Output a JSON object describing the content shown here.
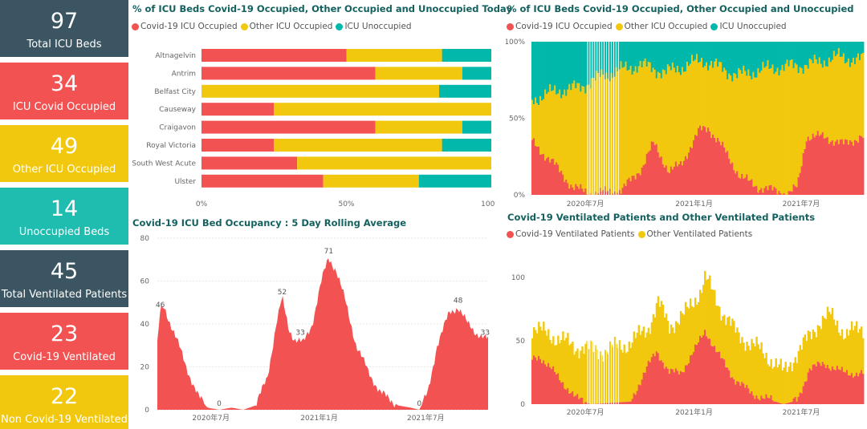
{
  "colors": {
    "covid": "#f25252",
    "other": "#f2c80f",
    "unoccupied": "#01b8aa",
    "slate": "#374649",
    "grid": "#e6e6e6",
    "axis_text": "#666666",
    "title": "#14615f"
  },
  "kpis": [
    {
      "value": "97",
      "label": "Total ICU Beds",
      "color": "#3b5662"
    },
    {
      "value": "34",
      "label": "ICU Covid Occupied",
      "color": "#f25252"
    },
    {
      "value": "49",
      "label": "Other ICU Occupied",
      "color": "#f2c80f"
    },
    {
      "value": "14",
      "label": "Unoccupied Beds",
      "color": "#1fbcb0"
    },
    {
      "value": "45",
      "label": "Total Ventilated Patients",
      "color": "#3b5662"
    },
    {
      "value": "23",
      "label": "Covid-19 Ventilated",
      "color": "#f25252"
    },
    {
      "value": "22",
      "label": "Non Covid-19 Ventilated",
      "color": "#f2c80f"
    }
  ],
  "chart_data": [
    {
      "id": "hospitals_today",
      "type": "bar",
      "orientation": "horizontal",
      "stacking": "percent",
      "title": "% of ICU Beds Covid-19 Occupied, Other Occupied and Unoccupied Today",
      "categories": [
        "Altnagelvin",
        "Antrim",
        "Belfast City",
        "Causeway",
        "Craigavon",
        "Royal Victoria",
        "South West Acute",
        "Ulster"
      ],
      "series": [
        {
          "name": "Covid-19 ICU Occupied",
          "color": "#f25252",
          "values": [
            50,
            60,
            0,
            25,
            60,
            25,
            33,
            42
          ]
        },
        {
          "name": "Other ICU Occupied",
          "color": "#f2c80f",
          "values": [
            33,
            30,
            82,
            75,
            30,
            58,
            67,
            33
          ]
        },
        {
          "name": "ICU Unoccupied",
          "color": "#01b8aa",
          "values": [
            17,
            10,
            18,
            0,
            10,
            17,
            0,
            25
          ]
        }
      ],
      "xticks": [
        "0%",
        "50%",
        "100%"
      ],
      "xlim": [
        0,
        100
      ],
      "legend": "top-left"
    },
    {
      "id": "icu_history",
      "type": "area",
      "stacking": "percent",
      "title": "% of ICU Beds Covid-19 Occupied, Other Occupied and Unoccupied",
      "x_range": [
        "2020-04",
        "2021-10"
      ],
      "series": [
        {
          "name": "Covid-19 ICU Occupied",
          "color": "#f25252"
        },
        {
          "name": "Other ICU Occupied",
          "color": "#f2c80f"
        },
        {
          "name": "ICU Unoccupied",
          "color": "#01b8aa"
        }
      ],
      "covid_pct_keypoints": [
        [
          "2020-04-01",
          35
        ],
        [
          "2020-05-10",
          20
        ],
        [
          "2020-06-10",
          5
        ],
        [
          "2020-07-10",
          1
        ],
        [
          "2020-09-01",
          3
        ],
        [
          "2020-10-05",
          18
        ],
        [
          "2020-10-25",
          34
        ],
        [
          "2020-11-20",
          15
        ],
        [
          "2020-12-10",
          20
        ],
        [
          "2021-01-10",
          42
        ],
        [
          "2021-01-25",
          44
        ],
        [
          "2021-02-20",
          30
        ],
        [
          "2021-03-20",
          12
        ],
        [
          "2021-04-20",
          5
        ],
        [
          "2021-06-10",
          1
        ],
        [
          "2021-06-25",
          5
        ],
        [
          "2021-07-10",
          38
        ],
        [
          "2021-08-10",
          38
        ],
        [
          "2021-09-10",
          33
        ],
        [
          "2021-10-10",
          38
        ]
      ],
      "occupied_pct_keypoints": [
        [
          "2020-04-01",
          62
        ],
        [
          "2020-05-15",
          68
        ],
        [
          "2020-06-20",
          70
        ],
        [
          "2020-08-01",
          78
        ],
        [
          "2020-10-01",
          85
        ],
        [
          "2020-11-15",
          80
        ],
        [
          "2021-01-15",
          88
        ],
        [
          "2021-03-15",
          78
        ],
        [
          "2021-05-15",
          83
        ],
        [
          "2021-07-15",
          85
        ],
        [
          "2021-09-01",
          90
        ],
        [
          "2021-10-10",
          88
        ]
      ],
      "yticks": [
        "0%",
        "50%",
        "100%"
      ],
      "xticks": [
        "2020年7月",
        "2021年1月",
        "2021年7月"
      ],
      "legend": "top-left"
    },
    {
      "id": "rolling_avg",
      "type": "area",
      "title": "Covid-19 ICU Bed Occupancy : 5 Day Rolling Average",
      "x_range": [
        "2020-04",
        "2021-10"
      ],
      "series": [
        {
          "name": "Covid-19 ICU Occupied",
          "color": "#f25252"
        }
      ],
      "ylim": [
        0,
        80
      ],
      "yticks": [
        0,
        20,
        40,
        60,
        80
      ],
      "xticks": [
        "2020年7月",
        "2021年1月",
        "2021年7月"
      ],
      "keypoints": [
        [
          "2020-04-01",
          30
        ],
        [
          "2020-04-06",
          46
        ],
        [
          "2020-04-12",
          48
        ],
        [
          "2020-05-01",
          35
        ],
        [
          "2020-05-20",
          20
        ],
        [
          "2020-06-10",
          6
        ],
        [
          "2020-06-25",
          1
        ],
        [
          "2020-07-15",
          0
        ],
        [
          "2020-08-05",
          1
        ],
        [
          "2020-08-25",
          0
        ],
        [
          "2020-09-15",
          2
        ],
        [
          "2020-10-05",
          15
        ],
        [
          "2020-10-20",
          40
        ],
        [
          "2020-10-30",
          52
        ],
        [
          "2020-11-10",
          38
        ],
        [
          "2020-11-20",
          33
        ],
        [
          "2020-12-05",
          31
        ],
        [
          "2020-12-20",
          40
        ],
        [
          "2021-01-05",
          60
        ],
        [
          "2021-01-17",
          71
        ],
        [
          "2021-01-30",
          65
        ],
        [
          "2021-02-15",
          50
        ],
        [
          "2021-03-05",
          30
        ],
        [
          "2021-03-25",
          18
        ],
        [
          "2021-04-15",
          8
        ],
        [
          "2021-05-15",
          2
        ],
        [
          "2021-06-05",
          1
        ],
        [
          "2021-06-20",
          0
        ],
        [
          "2021-07-05",
          8
        ],
        [
          "2021-07-20",
          30
        ],
        [
          "2021-08-10",
          45
        ],
        [
          "2021-08-25",
          48
        ],
        [
          "2021-09-10",
          40
        ],
        [
          "2021-09-25",
          36
        ],
        [
          "2021-10-10",
          33
        ]
      ],
      "data_labels": [
        {
          "x": "2020-04-06",
          "y": 46,
          "text": "46"
        },
        {
          "x": "2020-07-15",
          "y": 0,
          "text": "0"
        },
        {
          "x": "2020-10-30",
          "y": 52,
          "text": "52"
        },
        {
          "x": "2020-11-30",
          "y": 33,
          "text": "33"
        },
        {
          "x": "2021-01-17",
          "y": 71,
          "text": "71"
        },
        {
          "x": "2021-06-20",
          "y": 0,
          "text": "0"
        },
        {
          "x": "2021-08-25",
          "y": 48,
          "text": "48"
        },
        {
          "x": "2021-10-10",
          "y": 33,
          "text": "33"
        }
      ]
    },
    {
      "id": "ventilated",
      "type": "area",
      "stacking": "stacked",
      "title": "Covid-19 Ventilated Patients and Other Ventilated Patients",
      "x_range": [
        "2020-04",
        "2021-10"
      ],
      "series": [
        {
          "name": "Covid-19 Ventilated Patients",
          "color": "#f25252"
        },
        {
          "name": "Other Ventilated Patients",
          "color": "#f2c80f"
        }
      ],
      "ylim": [
        0,
        110
      ],
      "yticks": [
        0,
        50,
        100
      ],
      "xticks": [
        "2020年7月",
        "2021年1月",
        "2021年7月"
      ],
      "covid_keypoints": [
        [
          "2020-04-01",
          35
        ],
        [
          "2020-04-15",
          38
        ],
        [
          "2020-05-15",
          22
        ],
        [
          "2020-06-15",
          5
        ],
        [
          "2020-07-10",
          0
        ],
        [
          "2020-09-15",
          2
        ],
        [
          "2020-10-15",
          30
        ],
        [
          "2020-10-30",
          42
        ],
        [
          "2020-11-20",
          25
        ],
        [
          "2020-12-10",
          25
        ],
        [
          "2021-01-05",
          45
        ],
        [
          "2021-01-20",
          58
        ],
        [
          "2021-02-10",
          40
        ],
        [
          "2021-03-10",
          20
        ],
        [
          "2021-04-10",
          8
        ],
        [
          "2021-06-01",
          0
        ],
        [
          "2021-06-25",
          3
        ],
        [
          "2021-07-15",
          28
        ],
        [
          "2021-08-10",
          32
        ],
        [
          "2021-09-10",
          25
        ],
        [
          "2021-10-10",
          24
        ]
      ],
      "total_keypoints": [
        [
          "2020-04-01",
          60
        ],
        [
          "2020-05-01",
          55
        ],
        [
          "2020-06-15",
          45
        ],
        [
          "2020-08-01",
          42
        ],
        [
          "2020-09-15",
          48
        ],
        [
          "2020-10-15",
          60
        ],
        [
          "2020-11-01",
          80
        ],
        [
          "2020-11-20",
          62
        ],
        [
          "2020-12-15",
          70
        ],
        [
          "2021-01-10",
          88
        ],
        [
          "2021-01-20",
          100
        ],
        [
          "2021-02-15",
          75
        ],
        [
          "2021-03-15",
          55
        ],
        [
          "2021-05-01",
          40
        ],
        [
          "2021-06-01",
          25
        ],
        [
          "2021-07-10",
          50
        ],
        [
          "2021-08-01",
          65
        ],
        [
          "2021-08-20",
          70
        ],
        [
          "2021-09-15",
          55
        ],
        [
          "2021-10-10",
          60
        ]
      ],
      "legend": "top-left"
    }
  ]
}
